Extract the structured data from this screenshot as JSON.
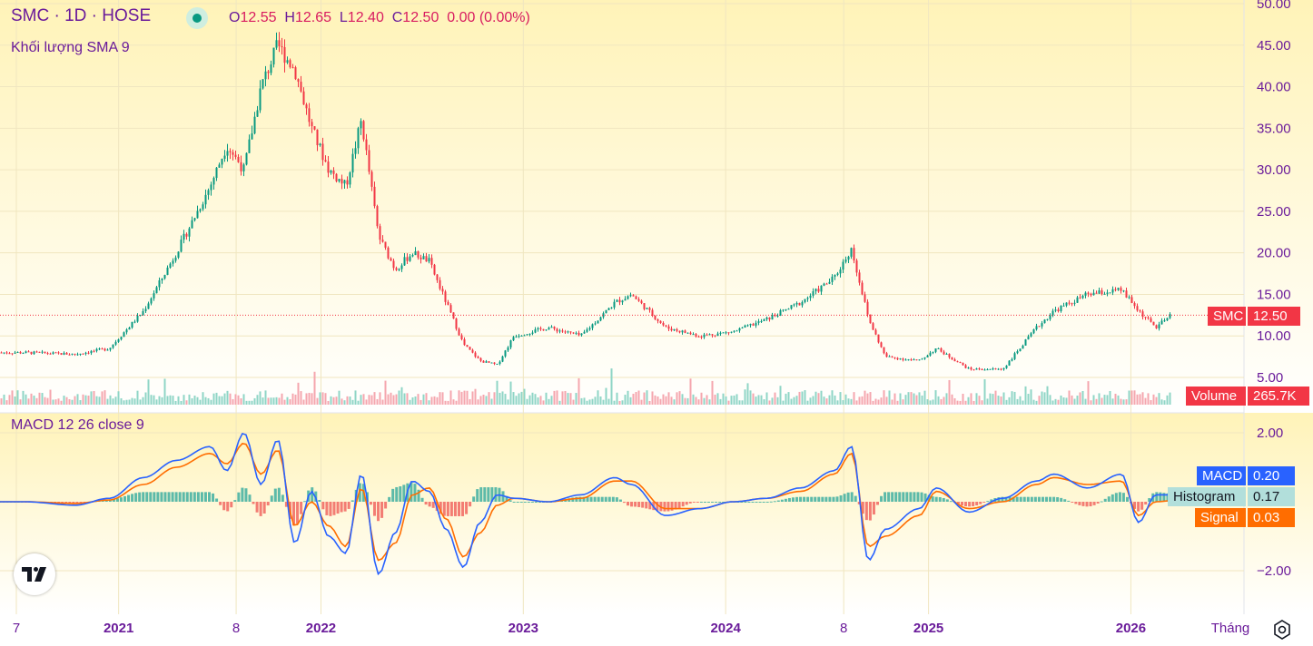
{
  "header": {
    "symbol_title": "SMC · 1D · HOSE",
    "ohlc": {
      "o_label": "O",
      "o_value": "12.55",
      "h_label": "H",
      "h_value": "12.65",
      "l_label": "L",
      "l_value": "12.40",
      "c_label": "C",
      "c_value": "12.50",
      "change": "0.00 (0.00%)"
    },
    "volume_indicator_label": "Khối lượng SMA 9",
    "macd_indicator_label": "MACD 12 26 close 9"
  },
  "price_scale": [
    "50.00",
    "45.00",
    "40.00",
    "35.00",
    "30.00",
    "25.00",
    "20.00",
    "15.00",
    "10.00",
    "5.00"
  ],
  "macd_scale": [
    "2.00",
    "−2.00"
  ],
  "time_axis": [
    "7",
    "2021",
    "8",
    "2022",
    "2023",
    "2024",
    "8",
    "2025",
    "2026",
    "Tháng"
  ],
  "tags": {
    "price_symbol": "SMC",
    "price_value": "12.50",
    "volume_label": "Volume",
    "volume_value": "265.7K",
    "macd_label": "MACD",
    "macd_value": "0.20",
    "hist_label": "Histogram",
    "hist_value": "0.17",
    "signal_label": "Signal",
    "signal_value": "0.03"
  },
  "colors": {
    "up": "#089981",
    "down": "#f23645",
    "macd_line": "#2962ff",
    "signal_line": "#ff6d00",
    "text_purple": "#6a1b9a",
    "tag_red": "#f23645"
  },
  "icons": {
    "logo": "tradingview-logo-icon",
    "settings": "gear-icon"
  },
  "chart_data": [
    {
      "type": "line",
      "title": "SMC · 1D · HOSE",
      "series": [
        {
          "name": "SMC",
          "x": [
            "2020-07",
            "2020-10",
            "2020-12",
            "2021-02",
            "2021-04",
            "2021-06",
            "2021-07",
            "2021-08",
            "2021-09",
            "2021-10",
            "2021-11",
            "2021-12",
            "2022-01",
            "2022-02",
            "2022-03",
            "2022-04",
            "2022-05",
            "2022-06",
            "2022-07",
            "2022-08",
            "2022-09",
            "2022-10",
            "2022-11",
            "2022-12",
            "2023-02",
            "2023-04",
            "2023-06",
            "2023-07",
            "2023-09",
            "2023-11",
            "2024-01",
            "2024-03",
            "2024-05",
            "2024-07",
            "2024-08",
            "2024-09",
            "2024-10",
            "2024-12",
            "2025-01",
            "2025-03",
            "2025-05",
            "2025-07",
            "2025-08",
            "2025-10",
            "2025-12",
            "2026-01",
            "2026-02",
            "2026-03"
          ],
          "values": [
            8,
            7.8,
            8.5,
            13,
            20,
            28,
            33,
            30,
            40,
            45,
            42,
            35,
            30,
            28,
            36,
            22,
            18,
            20,
            19,
            14,
            9,
            7,
            6.5,
            10,
            11,
            10,
            14,
            15,
            11,
            10,
            10.5,
            12,
            14,
            17,
            20.5,
            12,
            7.5,
            7,
            8.5,
            6,
            6,
            11,
            13,
            15,
            15.5,
            13,
            11,
            12.5
          ]
        }
      ],
      "ylim": [
        3,
        50
      ],
      "last_value": 12.5
    },
    {
      "type": "bar",
      "title": "Khối lượng SMA 9",
      "last_value": "265.7K"
    },
    {
      "type": "line",
      "title": "MACD 12 26 close 9",
      "series": [
        {
          "name": "MACD",
          "x": [
            "2020-07",
            "2020-10",
            "2020-12",
            "2021-02",
            "2021-04",
            "2021-06",
            "2021-07",
            "2021-08",
            "2021-09",
            "2021-10",
            "2021-11",
            "2021-12",
            "2022-01",
            "2022-02",
            "2022-03",
            "2022-04",
            "2022-05",
            "2022-06",
            "2022-07",
            "2022-08",
            "2022-09",
            "2022-10",
            "2022-11",
            "2022-12",
            "2023-02",
            "2023-04",
            "2023-06",
            "2023-07",
            "2023-09",
            "2023-11",
            "2024-01",
            "2024-03",
            "2024-05",
            "2024-07",
            "2024-08",
            "2024-09",
            "2024-10",
            "2024-12",
            "2025-01",
            "2025-03",
            "2025-05",
            "2025-07",
            "2025-08",
            "2025-10",
            "2025-12",
            "2026-01",
            "2026-02",
            "2026-03"
          ],
          "values": [
            0,
            -0.1,
            0.1,
            0.7,
            1.2,
            1.6,
            0.9,
            2.0,
            0.5,
            1.8,
            -1.2,
            0.3,
            -1.0,
            -1.5,
            0.8,
            -2.1,
            -0.9,
            0.6,
            0.3,
            -0.8,
            -1.9,
            -0.6,
            0.2,
            0.1,
            0.0,
            0.2,
            0.7,
            0.5,
            -0.4,
            -0.2,
            0.0,
            0.1,
            0.4,
            0.9,
            1.6,
            -1.7,
            -0.8,
            -0.2,
            0.4,
            -0.3,
            0.1,
            0.6,
            0.8,
            0.4,
            0.8,
            -0.6,
            0.2,
            0.2
          ]
        },
        {
          "name": "Signal",
          "x": [
            "2020-07",
            "2020-10",
            "2020-12",
            "2021-02",
            "2021-04",
            "2021-06",
            "2021-07",
            "2021-08",
            "2021-09",
            "2021-10",
            "2021-11",
            "2021-12",
            "2022-01",
            "2022-02",
            "2022-03",
            "2022-04",
            "2022-05",
            "2022-06",
            "2022-07",
            "2022-08",
            "2022-09",
            "2022-10",
            "2022-11",
            "2022-12",
            "2023-02",
            "2023-04",
            "2023-06",
            "2023-07",
            "2023-09",
            "2023-11",
            "2024-01",
            "2024-03",
            "2024-05",
            "2024-07",
            "2024-08",
            "2024-09",
            "2024-10",
            "2024-12",
            "2025-01",
            "2025-03",
            "2025-05",
            "2025-07",
            "2025-08",
            "2025-10",
            "2025-12",
            "2026-01",
            "2026-02",
            "2026-03"
          ],
          "values": [
            0,
            -0.05,
            0.05,
            0.5,
            1.0,
            1.4,
            1.1,
            1.7,
            0.8,
            1.5,
            -0.7,
            0.0,
            -0.7,
            -1.3,
            0.4,
            -1.7,
            -1.2,
            0.2,
            0.4,
            -0.5,
            -1.6,
            -0.9,
            -0.1,
            0.1,
            0.0,
            0.1,
            0.6,
            0.6,
            -0.2,
            -0.2,
            0.0,
            0.1,
            0.3,
            0.8,
            1.4,
            -1.3,
            -1.0,
            -0.4,
            0.3,
            -0.2,
            0.0,
            0.5,
            0.7,
            0.5,
            0.6,
            -0.4,
            0.0,
            0.03
          ]
        }
      ],
      "ylim": [
        -2.5,
        2.5
      ],
      "last_values": {
        "MACD": 0.2,
        "Histogram": 0.17,
        "Signal": 0.03
      }
    }
  ]
}
